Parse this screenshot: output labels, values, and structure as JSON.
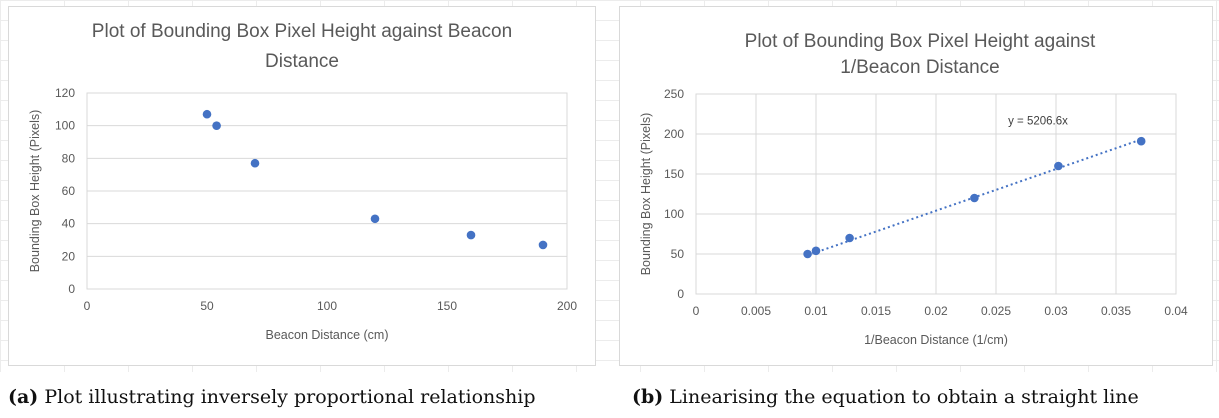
{
  "chart_data": [
    {
      "type": "scatter",
      "title_lines": [
        "Plot of Bounding Box Pixel Height against Beacon",
        "Distance"
      ],
      "xlabel": "Beacon Distance (cm)",
      "ylabel": "Bounding Box Height (Pixels)",
      "xlim": [
        0,
        200
      ],
      "ylim": [
        0,
        120
      ],
      "xticks": [
        0,
        50,
        100,
        150,
        200
      ],
      "yticks": [
        0,
        20,
        40,
        60,
        80,
        100,
        120
      ],
      "grid": "horizontal",
      "series": [
        {
          "color": "#4472c4",
          "points": [
            {
              "x": 50,
              "y": 107
            },
            {
              "x": 54,
              "y": 100
            },
            {
              "x": 70,
              "y": 77
            },
            {
              "x": 120,
              "y": 43
            },
            {
              "x": 160,
              "y": 33
            },
            {
              "x": 190,
              "y": 27
            }
          ]
        }
      ]
    },
    {
      "type": "scatter",
      "title_lines": [
        "Plot of Bounding Box Pixel Height against",
        "1/Beacon Distance"
      ],
      "xlabel": "1/Beacon Distance (1/cm)",
      "ylabel": "Bounding Box Height (Pixels)",
      "xlim": [
        0,
        0.04
      ],
      "ylim": [
        0,
        250
      ],
      "xticks": [
        0,
        0.005,
        0.01,
        0.015,
        0.02,
        0.025,
        0.03,
        0.035,
        0.04
      ],
      "yticks": [
        0,
        50,
        100,
        150,
        200,
        250
      ],
      "grid": "both",
      "series": [
        {
          "color": "#4472c4",
          "points": [
            {
              "x": 0.0093,
              "y": 50
            },
            {
              "x": 0.01,
              "y": 54
            },
            {
              "x": 0.0128,
              "y": 70
            },
            {
              "x": 0.0232,
              "y": 120
            },
            {
              "x": 0.0302,
              "y": 160
            },
            {
              "x": 0.0371,
              "y": 191
            }
          ]
        }
      ],
      "trendline": {
        "slope": 5206.6,
        "x_range": [
          0.0093,
          0.0371
        ],
        "equation": "y = 5206.6x"
      }
    }
  ],
  "captions": [
    {
      "label": "(a)",
      "text": " Plot illustrating inversely proportional relationship"
    },
    {
      "label": "(b)",
      "text": " Linearising the equation to obtain a straight line"
    }
  ]
}
